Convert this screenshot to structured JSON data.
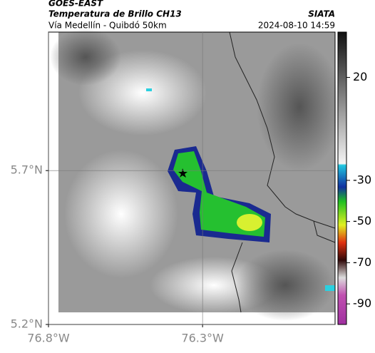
{
  "header": {
    "satellite": "GOES-EAST",
    "product": "Temperatura de Brillo CH13",
    "route": "Vía Medellín - Quibdó 50km",
    "datetime": "2024-08-10 14:59",
    "source": "SIATA"
  },
  "map": {
    "xlim": [
      -76.8,
      -75.87
    ],
    "ylim": [
      5.2,
      6.15
    ],
    "xticks": [
      {
        "value": -76.8,
        "label": "76.8°W"
      },
      {
        "value": -76.3,
        "label": "76.3°W"
      }
    ],
    "yticks": [
      {
        "value": 5.7,
        "label": "5.7°N"
      },
      {
        "value": 5.2,
        "label": "5.2°N"
      }
    ],
    "grid": true
  },
  "colorbar": {
    "clim": [
      42,
      -100
    ],
    "ticks": [
      20,
      -30,
      -50,
      -70,
      -90
    ]
  }
}
